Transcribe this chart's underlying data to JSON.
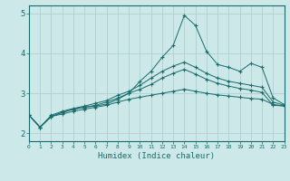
{
  "xlabel": "Humidex (Indice chaleur)",
  "xlim": [
    0,
    23
  ],
  "ylim": [
    1.8,
    5.2
  ],
  "xticks": [
    0,
    1,
    2,
    3,
    4,
    5,
    6,
    7,
    8,
    9,
    10,
    11,
    12,
    13,
    14,
    15,
    16,
    17,
    18,
    19,
    20,
    21,
    22,
    23
  ],
  "yticks": [
    2,
    3,
    4,
    5
  ],
  "bg_color": "#cce8e8",
  "grid_color": "#aacccc",
  "line_color": "#1a6b6b",
  "series_spike_x": [
    0,
    1,
    2,
    3,
    4,
    5,
    6,
    7,
    8,
    9,
    10,
    11,
    12,
    13,
    14,
    15,
    16,
    17,
    18,
    19,
    20,
    21,
    22,
    23
  ],
  "series_spike_y": [
    2.45,
    2.15,
    2.42,
    2.52,
    2.6,
    2.65,
    2.68,
    2.73,
    2.85,
    3.0,
    3.3,
    3.55,
    3.9,
    4.2,
    4.95,
    4.7,
    4.05,
    3.72,
    3.65,
    3.55,
    3.75,
    3.65,
    2.88,
    2.72
  ],
  "series_mid_x": [
    0,
    1,
    2,
    3,
    4,
    5,
    6,
    7,
    8,
    9,
    10,
    11,
    12,
    13,
    14,
    15,
    16,
    17,
    18,
    19,
    20,
    21,
    22,
    23
  ],
  "series_mid_y": [
    2.45,
    2.15,
    2.42,
    2.52,
    2.6,
    2.65,
    2.7,
    2.78,
    2.88,
    3.0,
    3.1,
    3.22,
    3.38,
    3.5,
    3.6,
    3.48,
    3.35,
    3.25,
    3.18,
    3.12,
    3.08,
    3.02,
    2.7,
    2.68
  ],
  "series_low_x": [
    0,
    1,
    2,
    3,
    4,
    5,
    6,
    7,
    8,
    9,
    10,
    11,
    12,
    13,
    14,
    15,
    16,
    17,
    18,
    19,
    20,
    21,
    22,
    23
  ],
  "series_low_y": [
    2.45,
    2.15,
    2.42,
    2.48,
    2.55,
    2.6,
    2.65,
    2.7,
    2.78,
    2.85,
    2.9,
    2.95,
    3.0,
    3.05,
    3.1,
    3.05,
    3.0,
    2.96,
    2.93,
    2.9,
    2.87,
    2.85,
    2.72,
    2.68
  ],
  "series_top_x": [
    0,
    1,
    2,
    3,
    4,
    5,
    6,
    7,
    8,
    9,
    10,
    11,
    12,
    13,
    14,
    15,
    16,
    17,
    18,
    19,
    20,
    21,
    22,
    23
  ],
  "series_top_y": [
    2.45,
    2.15,
    2.45,
    2.55,
    2.62,
    2.68,
    2.75,
    2.82,
    2.95,
    3.05,
    3.2,
    3.38,
    3.55,
    3.68,
    3.78,
    3.65,
    3.5,
    3.38,
    3.3,
    3.25,
    3.2,
    3.15,
    2.78,
    2.7
  ]
}
